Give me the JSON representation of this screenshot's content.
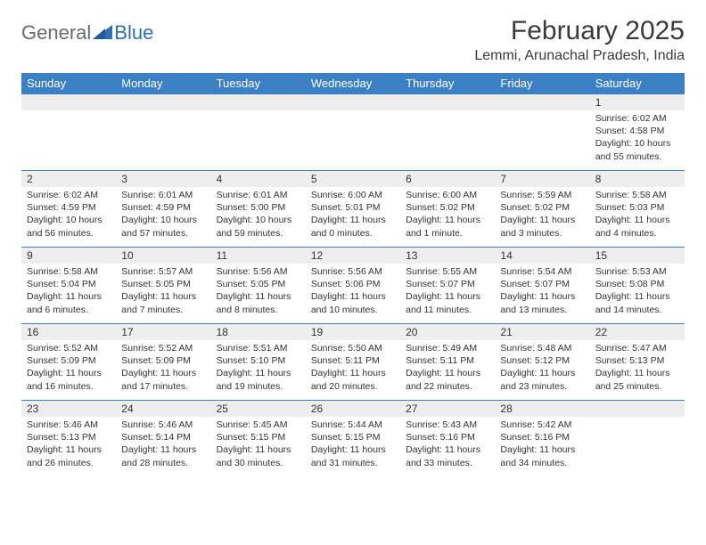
{
  "logo": {
    "text1": "General",
    "text2": "Blue",
    "color_gray": "#6a6a6a",
    "color_blue": "#2e6fb5"
  },
  "title": "February 2025",
  "location": "Lemmi, Arunachal Pradesh, India",
  "header_bg": "#3b7fc4",
  "daynum_bg": "#eeeeee",
  "columns": [
    "Sunday",
    "Monday",
    "Tuesday",
    "Wednesday",
    "Thursday",
    "Friday",
    "Saturday"
  ],
  "weeks": [
    [
      null,
      null,
      null,
      null,
      null,
      null,
      {
        "n": "1",
        "sunrise": "6:02 AM",
        "sunset": "4:58 PM",
        "daylight": "10 hours and 55 minutes."
      }
    ],
    [
      {
        "n": "2",
        "sunrise": "6:02 AM",
        "sunset": "4:59 PM",
        "daylight": "10 hours and 56 minutes."
      },
      {
        "n": "3",
        "sunrise": "6:01 AM",
        "sunset": "4:59 PM",
        "daylight": "10 hours and 57 minutes."
      },
      {
        "n": "4",
        "sunrise": "6:01 AM",
        "sunset": "5:00 PM",
        "daylight": "10 hours and 59 minutes."
      },
      {
        "n": "5",
        "sunrise": "6:00 AM",
        "sunset": "5:01 PM",
        "daylight": "11 hours and 0 minutes."
      },
      {
        "n": "6",
        "sunrise": "6:00 AM",
        "sunset": "5:02 PM",
        "daylight": "11 hours and 1 minute."
      },
      {
        "n": "7",
        "sunrise": "5:59 AM",
        "sunset": "5:02 PM",
        "daylight": "11 hours and 3 minutes."
      },
      {
        "n": "8",
        "sunrise": "5:58 AM",
        "sunset": "5:03 PM",
        "daylight": "11 hours and 4 minutes."
      }
    ],
    [
      {
        "n": "9",
        "sunrise": "5:58 AM",
        "sunset": "5:04 PM",
        "daylight": "11 hours and 6 minutes."
      },
      {
        "n": "10",
        "sunrise": "5:57 AM",
        "sunset": "5:05 PM",
        "daylight": "11 hours and 7 minutes."
      },
      {
        "n": "11",
        "sunrise": "5:56 AM",
        "sunset": "5:05 PM",
        "daylight": "11 hours and 8 minutes."
      },
      {
        "n": "12",
        "sunrise": "5:56 AM",
        "sunset": "5:06 PM",
        "daylight": "11 hours and 10 minutes."
      },
      {
        "n": "13",
        "sunrise": "5:55 AM",
        "sunset": "5:07 PM",
        "daylight": "11 hours and 11 minutes."
      },
      {
        "n": "14",
        "sunrise": "5:54 AM",
        "sunset": "5:07 PM",
        "daylight": "11 hours and 13 minutes."
      },
      {
        "n": "15",
        "sunrise": "5:53 AM",
        "sunset": "5:08 PM",
        "daylight": "11 hours and 14 minutes."
      }
    ],
    [
      {
        "n": "16",
        "sunrise": "5:52 AM",
        "sunset": "5:09 PM",
        "daylight": "11 hours and 16 minutes."
      },
      {
        "n": "17",
        "sunrise": "5:52 AM",
        "sunset": "5:09 PM",
        "daylight": "11 hours and 17 minutes."
      },
      {
        "n": "18",
        "sunrise": "5:51 AM",
        "sunset": "5:10 PM",
        "daylight": "11 hours and 19 minutes."
      },
      {
        "n": "19",
        "sunrise": "5:50 AM",
        "sunset": "5:11 PM",
        "daylight": "11 hours and 20 minutes."
      },
      {
        "n": "20",
        "sunrise": "5:49 AM",
        "sunset": "5:11 PM",
        "daylight": "11 hours and 22 minutes."
      },
      {
        "n": "21",
        "sunrise": "5:48 AM",
        "sunset": "5:12 PM",
        "daylight": "11 hours and 23 minutes."
      },
      {
        "n": "22",
        "sunrise": "5:47 AM",
        "sunset": "5:13 PM",
        "daylight": "11 hours and 25 minutes."
      }
    ],
    [
      {
        "n": "23",
        "sunrise": "5:46 AM",
        "sunset": "5:13 PM",
        "daylight": "11 hours and 26 minutes."
      },
      {
        "n": "24",
        "sunrise": "5:46 AM",
        "sunset": "5:14 PM",
        "daylight": "11 hours and 28 minutes."
      },
      {
        "n": "25",
        "sunrise": "5:45 AM",
        "sunset": "5:15 PM",
        "daylight": "11 hours and 30 minutes."
      },
      {
        "n": "26",
        "sunrise": "5:44 AM",
        "sunset": "5:15 PM",
        "daylight": "11 hours and 31 minutes."
      },
      {
        "n": "27",
        "sunrise": "5:43 AM",
        "sunset": "5:16 PM",
        "daylight": "11 hours and 33 minutes."
      },
      {
        "n": "28",
        "sunrise": "5:42 AM",
        "sunset": "5:16 PM",
        "daylight": "11 hours and 34 minutes."
      },
      null
    ]
  ],
  "labels": {
    "sunrise": "Sunrise:",
    "sunset": "Sunset:",
    "daylight": "Daylight:"
  }
}
